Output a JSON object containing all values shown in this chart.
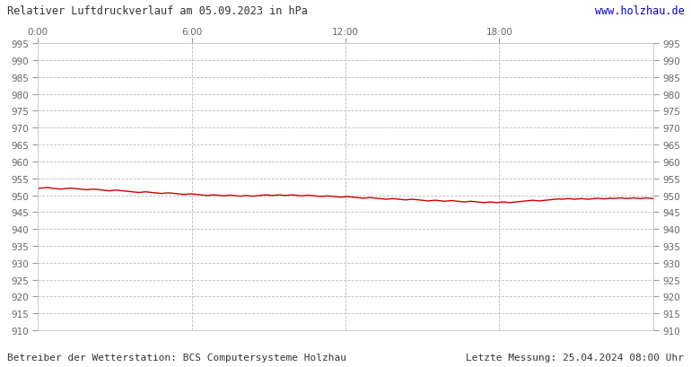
{
  "title_left": "Relativer Luftdruckverlauf am 05.09.2023 in hPa",
  "title_right": "www.holzhau.de",
  "title_right_color": "#0000cc",
  "footer_left": "Betreiber der Wetterstation: BCS Computersysteme Holzhau",
  "footer_right": "Letzte Messung: 25.04.2024 08:00 Uhr",
  "bg_color": "#ffffff",
  "plot_bg_color": "#ffffff",
  "line_color": "#cc0000",
  "grid_color": "#bbbbbb",
  "text_color": "#666666",
  "ylim": [
    910,
    995
  ],
  "ytick_step": 5,
  "xtick_positions": [
    0,
    360,
    720,
    1080
  ],
  "xtick_labels": [
    "0:00",
    "6:00",
    "12:00",
    "18:00"
  ],
  "xlim": [
    0,
    1440
  ],
  "pressure_data": [
    952.0,
    952.1,
    952.2,
    952.3,
    952.1,
    952.0,
    951.9,
    951.8,
    951.9,
    952.0,
    952.1,
    952.0,
    951.9,
    951.8,
    951.7,
    951.6,
    951.7,
    951.8,
    951.7,
    951.6,
    951.5,
    951.4,
    951.3,
    951.4,
    951.5,
    951.4,
    951.3,
    951.2,
    951.1,
    951.0,
    950.9,
    950.8,
    950.9,
    951.0,
    950.9,
    950.8,
    950.7,
    950.6,
    950.5,
    950.6,
    950.7,
    950.6,
    950.5,
    950.4,
    950.3,
    950.2,
    950.3,
    950.4,
    950.3,
    950.2,
    950.1,
    950.0,
    949.9,
    950.0,
    950.1,
    950.0,
    949.9,
    949.8,
    949.9,
    950.0,
    949.9,
    949.8,
    949.7,
    949.8,
    949.9,
    949.8,
    949.7,
    949.8,
    949.9,
    950.0,
    950.1,
    950.0,
    949.9,
    950.0,
    950.1,
    950.0,
    949.9,
    950.0,
    950.1,
    950.0,
    949.9,
    949.8,
    949.9,
    950.0,
    949.9,
    949.8,
    949.7,
    949.6,
    949.7,
    949.8,
    949.7,
    949.6,
    949.5,
    949.4,
    949.5,
    949.6,
    949.5,
    949.4,
    949.3,
    949.2,
    949.1,
    949.2,
    949.3,
    949.2,
    949.1,
    949.0,
    948.9,
    948.8,
    948.9,
    949.0,
    948.9,
    948.8,
    948.7,
    948.6,
    948.7,
    948.8,
    948.7,
    948.6,
    948.5,
    948.4,
    948.3,
    948.4,
    948.5,
    948.4,
    948.3,
    948.2,
    948.3,
    948.4,
    948.3,
    948.2,
    948.1,
    948.0,
    948.1,
    948.2,
    948.1,
    948.0,
    947.9,
    947.8,
    947.9,
    948.0,
    947.9,
    947.8,
    947.9,
    948.0,
    947.9,
    947.8,
    947.9,
    948.0,
    948.1,
    948.2,
    948.3,
    948.4,
    948.5,
    948.4,
    948.3,
    948.4,
    948.5,
    948.6,
    948.7,
    948.8,
    948.9,
    948.8,
    948.9,
    949.0,
    948.9,
    948.8,
    948.9,
    949.0,
    948.9,
    948.8,
    948.9,
    949.0,
    949.1,
    949.0,
    948.9,
    949.0,
    949.1,
    949.0,
    949.1,
    949.2,
    949.1,
    949.0,
    949.1,
    949.2,
    949.1,
    949.0,
    949.1,
    949.2,
    949.1,
    949.0
  ]
}
